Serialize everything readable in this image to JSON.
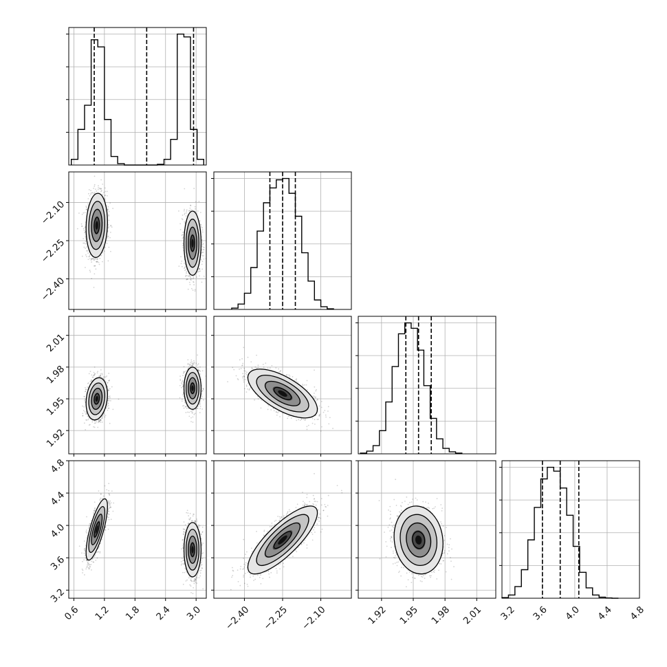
{
  "chart_data": {
    "type": "corner",
    "grid": true,
    "parameters": [
      {
        "range": [
          0.5,
          3.2
        ],
        "ticks": [
          0.6,
          1.2,
          1.8,
          2.4,
          3.0
        ],
        "tick_labels": [
          "0.6",
          "1.2",
          "1.8",
          "2.4",
          "3.0"
        ],
        "quantiles": [
          1.0,
          2.03,
          2.95
        ],
        "histogram": {
          "bin_edges": [
            0.55,
            0.68,
            0.81,
            0.94,
            1.07,
            1.2,
            1.33,
            1.46,
            1.59,
            1.72,
            1.85,
            1.98,
            2.11,
            2.24,
            2.37,
            2.5,
            2.63,
            2.76,
            2.89,
            3.02,
            3.15
          ],
          "counts": [
            40,
            250,
            420,
            880,
            830,
            320,
            60,
            10,
            0,
            0,
            0,
            0,
            0,
            5,
            40,
            180,
            920,
            900,
            250,
            40
          ]
        }
      },
      {
        "range": [
          -2.52,
          -1.98
        ],
        "ticks": [
          -2.4,
          -2.25,
          -2.1
        ],
        "tick_labels": [
          "−2.40",
          "−2.25",
          "−2.10"
        ],
        "quantiles": [
          -2.3,
          -2.25,
          -2.2
        ],
        "histogram": {
          "bin_edges": [
            -2.45,
            -2.425,
            -2.4,
            -2.375,
            -2.35,
            -2.325,
            -2.3,
            -2.275,
            -2.25,
            -2.225,
            -2.2,
            -2.175,
            -2.15,
            -2.125,
            -2.1,
            -2.075,
            -2.05
          ],
          "counts": [
            10,
            40,
            120,
            310,
            580,
            790,
            900,
            960,
            970,
            860,
            690,
            420,
            210,
            70,
            20,
            5
          ]
        }
      },
      {
        "range": [
          1.898,
          2.028
        ],
        "ticks": [
          1.92,
          1.95,
          1.98,
          2.01
        ],
        "tick_labels": [
          "1.92",
          "1.95",
          "1.98",
          "2.01"
        ],
        "quantiles": [
          1.943,
          1.955,
          1.967
        ],
        "histogram": {
          "bin_edges": [
            1.9,
            1.906,
            1.912,
            1.918,
            1.924,
            1.93,
            1.936,
            1.942,
            1.948,
            1.954,
            1.96,
            1.966,
            1.972,
            1.978,
            1.984,
            1.99,
            1.996
          ],
          "counts": [
            5,
            20,
            60,
            170,
            380,
            640,
            880,
            960,
            920,
            760,
            500,
            260,
            110,
            40,
            15,
            5
          ]
        }
      },
      {
        "range": [
          3.1,
          4.8
        ],
        "ticks": [
          3.2,
          3.6,
          4.0,
          4.4,
          4.8
        ],
        "tick_labels": [
          "3.2",
          "3.6",
          "4.0",
          "4.4",
          "4.8"
        ],
        "quantiles": [
          3.6,
          3.82,
          4.05
        ],
        "histogram": {
          "bin_edges": [
            3.1,
            3.18,
            3.26,
            3.34,
            3.42,
            3.5,
            3.58,
            3.66,
            3.74,
            3.82,
            3.9,
            3.98,
            4.06,
            4.14,
            4.22,
            4.3,
            4.38,
            4.46,
            4.54
          ],
          "counts": [
            5,
            25,
            90,
            220,
            450,
            700,
            920,
            1010,
            980,
            850,
            640,
            400,
            200,
            80,
            25,
            8,
            2,
            0
          ]
        }
      }
    ],
    "pairs": [
      {
        "row": 1,
        "col": 0,
        "clusters": [
          {
            "center": [
              1.05,
              -2.19
            ],
            "sigma": [
              0.1,
              0.06
            ],
            "rho": 0.1
          },
          {
            "center": [
              2.93,
              -2.26
            ],
            "sigma": [
              0.08,
              0.06
            ],
            "rho": 0.0
          }
        ]
      },
      {
        "row": 2,
        "col": 0,
        "clusters": [
          {
            "center": [
              1.05,
              1.95
            ],
            "sigma": [
              0.1,
              0.0095
            ],
            "rho": 0.2
          },
          {
            "center": [
              2.93,
              1.96
            ],
            "sigma": [
              0.08,
              0.0095
            ],
            "rho": 0.0
          }
        ]
      },
      {
        "row": 2,
        "col": 1,
        "clusters": [
          {
            "center": [
              -2.25,
              1.955
            ],
            "sigma": [
              0.065,
              0.011
            ],
            "rho": -0.65
          }
        ]
      },
      {
        "row": 3,
        "col": 0,
        "clusters": [
          {
            "center": [
              1.05,
              3.95
            ],
            "sigma": [
              0.1,
              0.18
            ],
            "rho": 0.75
          },
          {
            "center": [
              2.93,
              3.7
            ],
            "sigma": [
              0.08,
              0.16
            ],
            "rho": 0.0
          }
        ]
      },
      {
        "row": 3,
        "col": 1,
        "clusters": [
          {
            "center": [
              -2.25,
              3.82
            ],
            "sigma": [
              0.065,
              0.2
            ],
            "rho": 0.8
          }
        ]
      },
      {
        "row": 3,
        "col": 2,
        "clusters": [
          {
            "center": [
              1.955,
              3.82
            ],
            "sigma": [
              0.011,
              0.2
            ],
            "rho": -0.1
          }
        ]
      }
    ],
    "contour_levels": [
      0.5,
      1.0,
      1.5,
      2.0
    ]
  }
}
